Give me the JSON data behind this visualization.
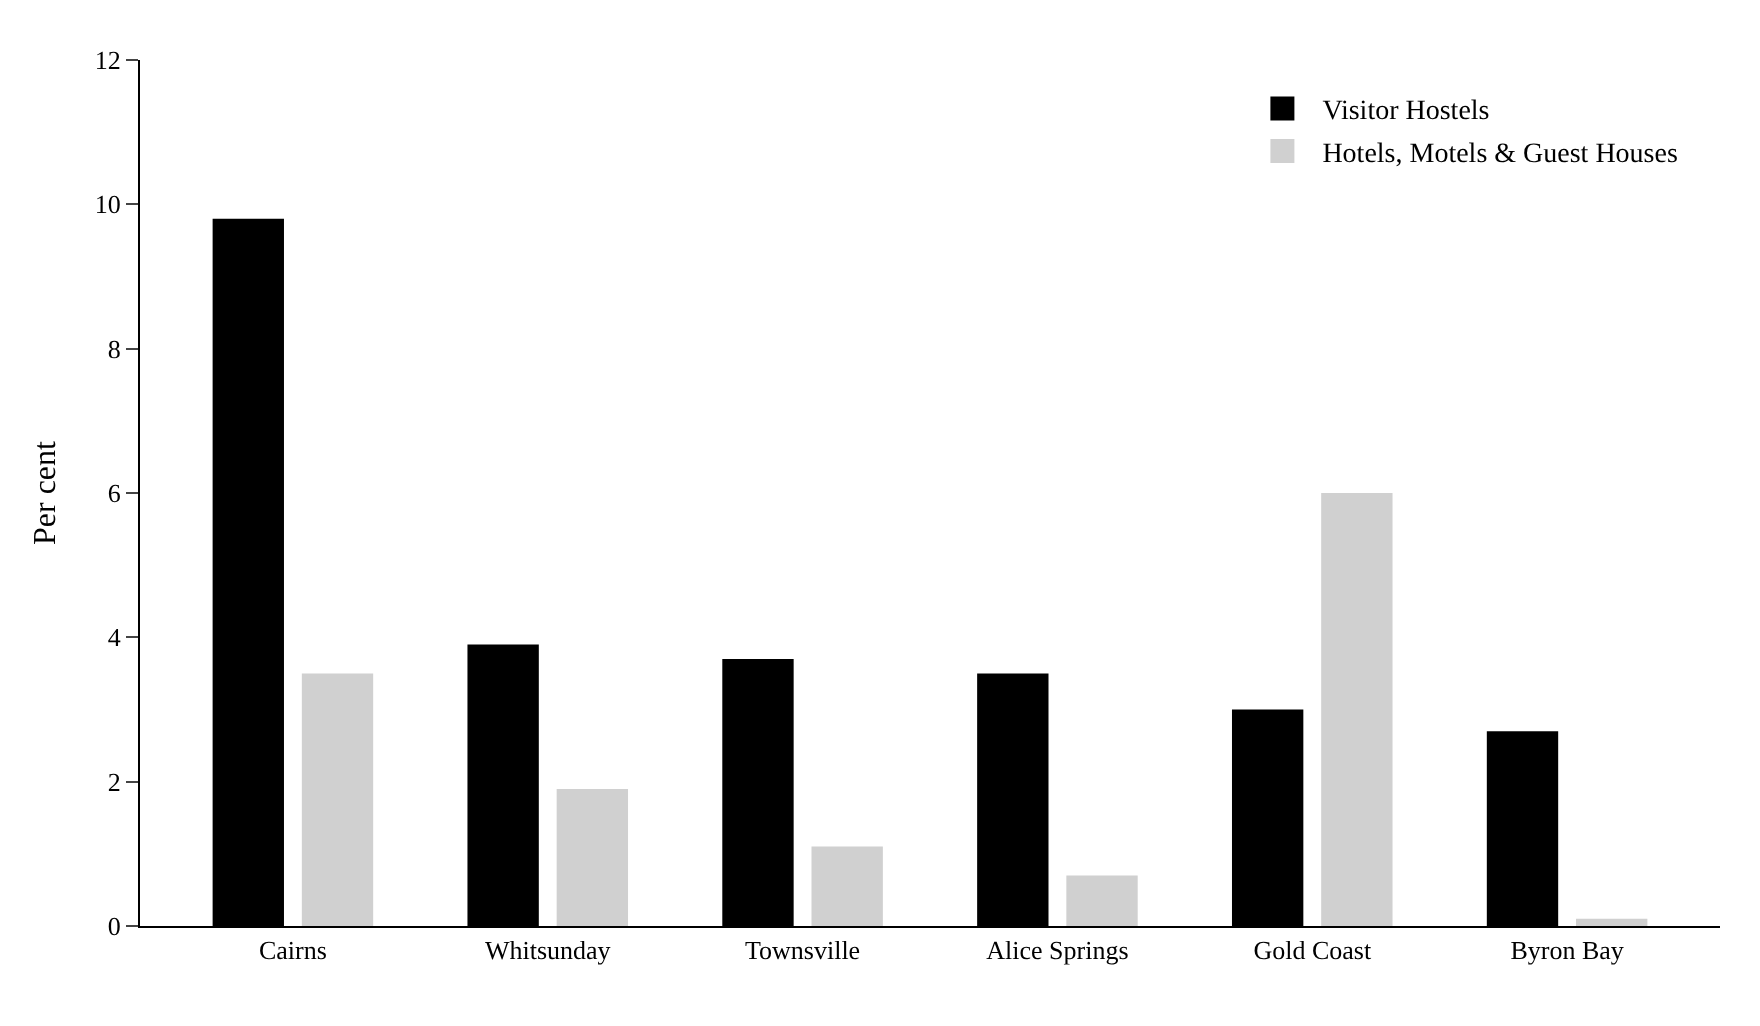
{
  "chart_data": {
    "type": "bar",
    "ylabel": "Per cent",
    "categories": [
      "Cairns",
      "Whitsunday",
      "Townsville",
      "Alice Springs",
      "Gold Coast",
      "Byron Bay"
    ],
    "series": [
      {
        "name": "Visitor Hostels",
        "color": "#000000",
        "values": [
          9.8,
          3.9,
          3.7,
          3.5,
          3.0,
          2.7
        ]
      },
      {
        "name": "Hotels, Motels & Guest Houses",
        "color": "#d0d0d0",
        "values": [
          3.5,
          1.9,
          1.1,
          0.7,
          6.0,
          0.1
        ]
      }
    ],
    "ylim": [
      0,
      12
    ],
    "yticks": [
      0,
      2,
      4,
      6,
      8,
      10,
      12
    ],
    "grid": false,
    "legend": "top right"
  }
}
